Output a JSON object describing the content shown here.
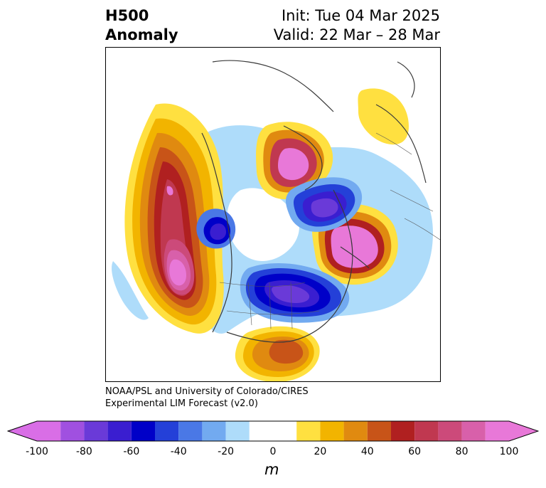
{
  "header": {
    "variable": "H500",
    "type": "Anomaly",
    "init": "Init: Tue 04 Mar 2025",
    "valid": "Valid: 22 Mar – 28 Mar"
  },
  "credit": {
    "line1": "NOAA/PSL and University of Colorado/CIRES",
    "line2": "Experimental LIM Forecast (v2.0)"
  },
  "colorbar": {
    "unit": "m",
    "ticks": [
      "-100",
      "-80",
      "-60",
      "-40",
      "-20",
      "0",
      "20",
      "40",
      "60",
      "80",
      "100"
    ],
    "range": [
      -100,
      100
    ],
    "bins": [
      {
        "from": -100,
        "to": -90,
        "color": "#d96ee6"
      },
      {
        "from": -90,
        "to": -80,
        "color": "#a050e0"
      },
      {
        "from": -80,
        "to": -70,
        "color": "#6a3ad8"
      },
      {
        "from": -70,
        "to": -60,
        "color": "#3a1ed0"
      },
      {
        "from": -60,
        "to": -50,
        "color": "#0000c8"
      },
      {
        "from": -50,
        "to": -40,
        "color": "#2440d8"
      },
      {
        "from": -40,
        "to": -30,
        "color": "#4a78e6"
      },
      {
        "from": -30,
        "to": -20,
        "color": "#72aaf0"
      },
      {
        "from": -20,
        "to": -10,
        "color": "#aedcfa"
      },
      {
        "from": -10,
        "to": 10,
        "color": "#ffffff"
      },
      {
        "from": 10,
        "to": 20,
        "color": "#ffe040"
      },
      {
        "from": 20,
        "to": 30,
        "color": "#f2b400"
      },
      {
        "from": 30,
        "to": 40,
        "color": "#e08a10"
      },
      {
        "from": 40,
        "to": 50,
        "color": "#c85418"
      },
      {
        "from": 50,
        "to": 60,
        "color": "#b02020"
      },
      {
        "from": 60,
        "to": 70,
        "color": "#c03850"
      },
      {
        "from": 70,
        "to": 80,
        "color": "#cc4a7a"
      },
      {
        "from": 80,
        "to": 90,
        "color": "#d860aa"
      },
      {
        "from": 90,
        "to": 100,
        "color": "#e878d8"
      }
    ]
  }
}
